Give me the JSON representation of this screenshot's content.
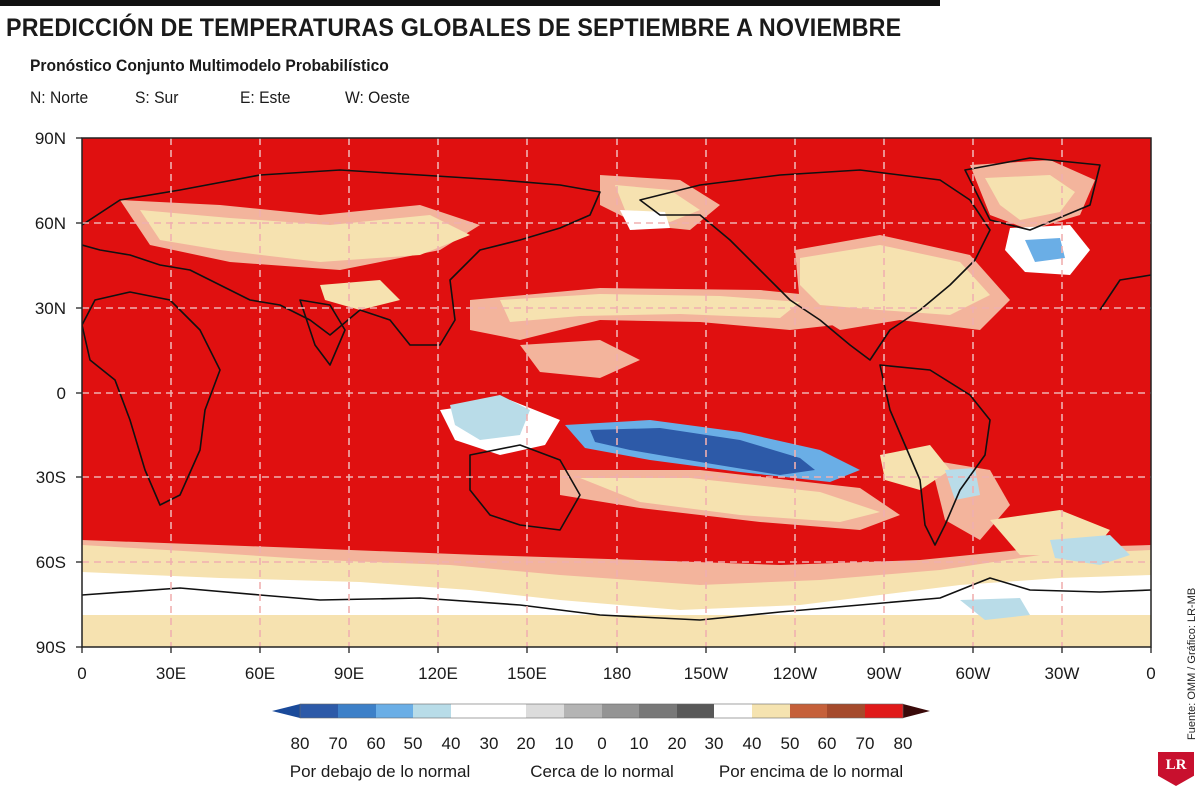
{
  "header": {
    "title": "PREDICCIÓN DE TEMPERATURAS GLOBALES DE SEPTIEMBRE A NOVIEMBRE",
    "subtitle": "Pronóstico Conjunto Multimodelo Probabilístico",
    "abbreviations": [
      "N: Norte",
      "S: Sur",
      "E: Este",
      "W: Oeste"
    ]
  },
  "map": {
    "lat_labels": [
      "90N",
      "60N",
      "30N",
      "0",
      "30S",
      "60S",
      "90S"
    ],
    "lon_labels": [
      "0",
      "30E",
      "60E",
      "90E",
      "120E",
      "150E",
      "180",
      "150W",
      "120W",
      "90W",
      "60W",
      "30W",
      "0"
    ],
    "background_color": "#e01010",
    "grid_color": "#f0b0b0"
  },
  "legend": {
    "ticks": [
      "80",
      "70",
      "60",
      "50",
      "40",
      "30",
      "20",
      "10",
      "0",
      "10",
      "20",
      "30",
      "40",
      "50",
      "60",
      "70",
      "80"
    ],
    "below_colors": [
      "#2d5aa8",
      "#3d80c8",
      "#6aaee6",
      "#b8dce8",
      "#ffffff"
    ],
    "near_colors": [
      "#ffffff",
      "#dcdcdc",
      "#b4b4b4",
      "#949494",
      "#787878",
      "#585858"
    ],
    "above_colors": [
      "#ffffff",
      "#f5e3b0",
      "#c5603a",
      "#a54a2c",
      "#e01a1a"
    ],
    "left_tip_color": "#1a4a9a",
    "right_tip_color": "#3a0a0a",
    "category_labels": [
      "Por debajo de lo normal",
      "Cerca de lo normal",
      "Por encima de lo normal"
    ]
  },
  "source": "Fuente: OMM / Gráfico: LR-MB",
  "logo": "LR"
}
